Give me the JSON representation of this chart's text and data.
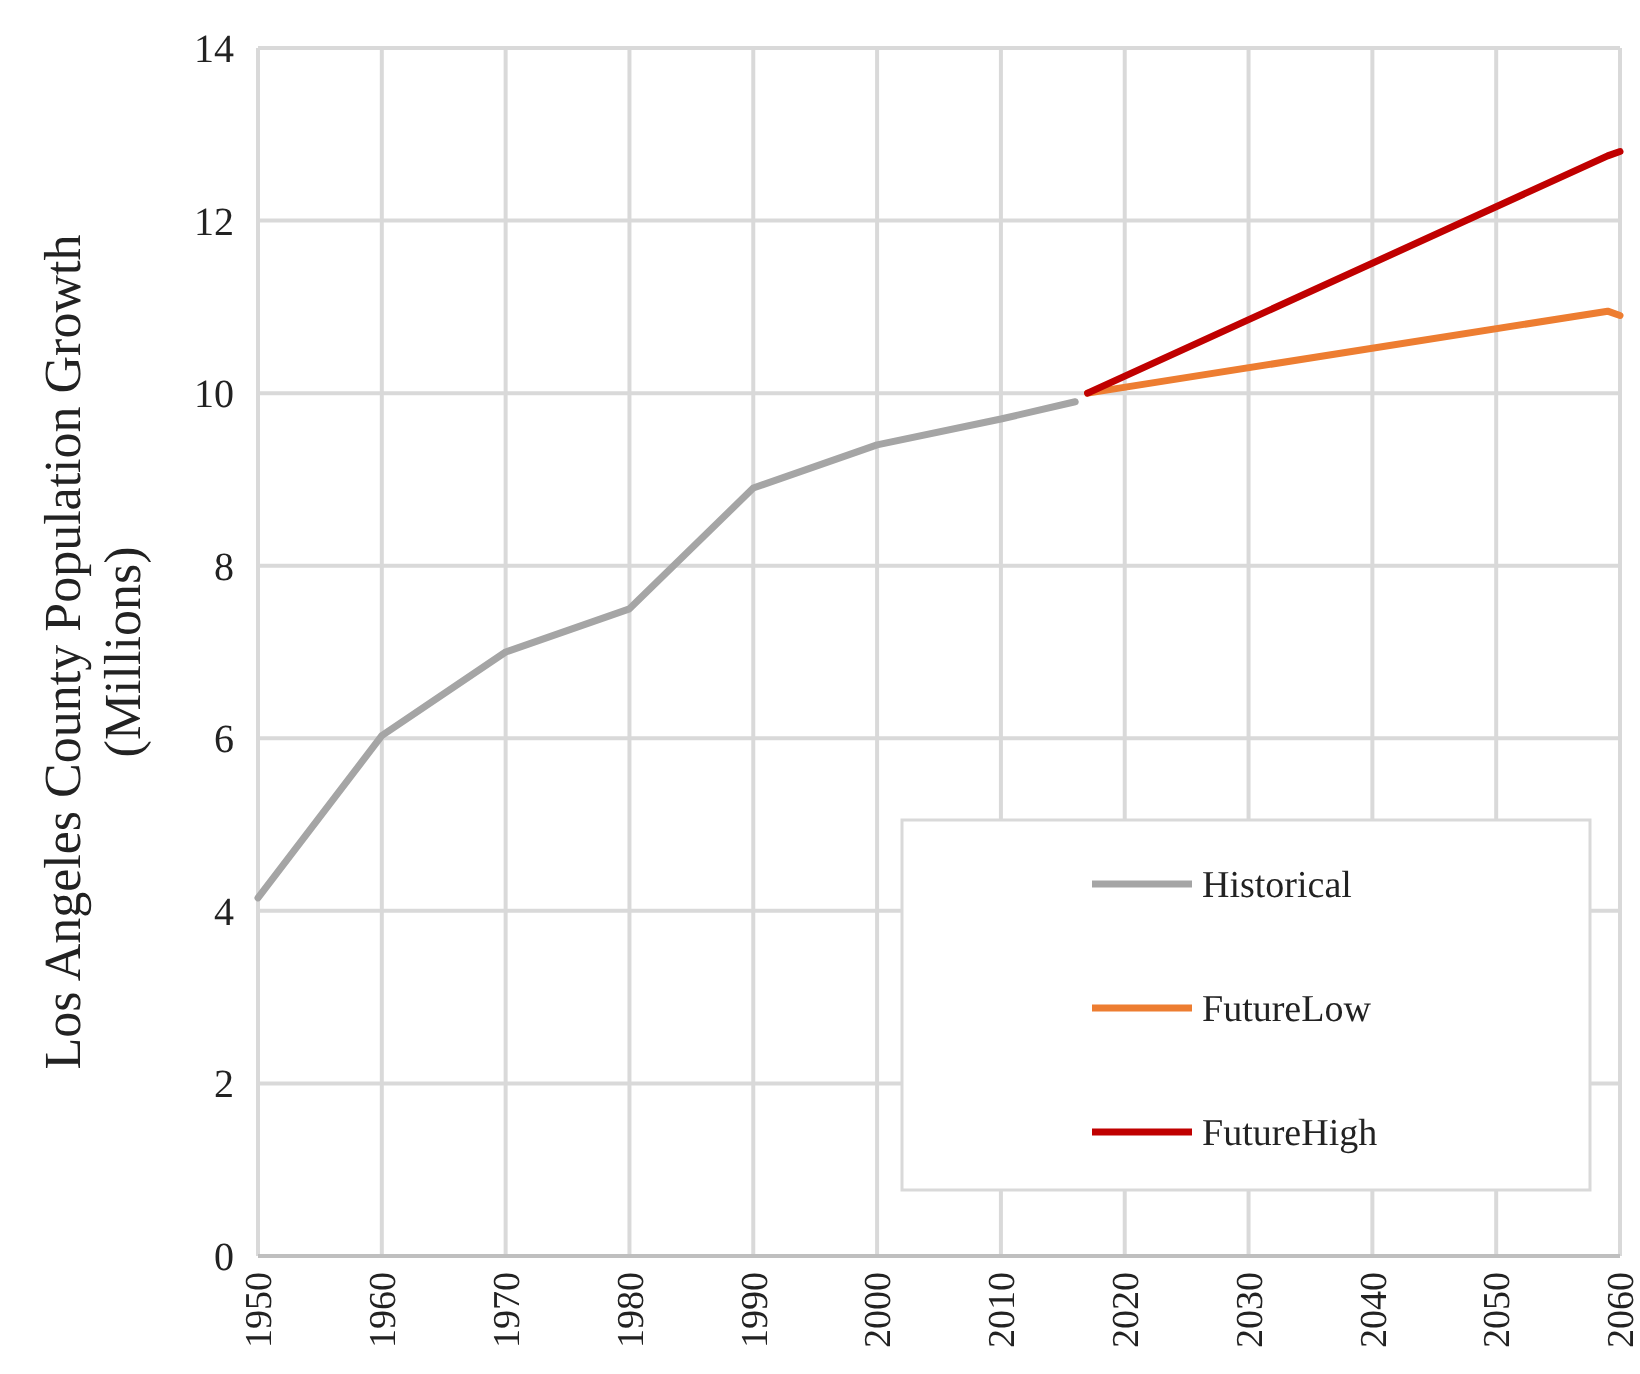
{
  "chart_data": {
    "type": "line",
    "ylabel": "Los Angeles County Population Growth\n(Millions)",
    "xlim": [
      1950,
      2060
    ],
    "xticks": [
      1950,
      1960,
      1970,
      1980,
      1990,
      2000,
      2010,
      2020,
      2030,
      2040,
      2050,
      2060
    ],
    "ylim": [
      0,
      14
    ],
    "yticks": [
      0,
      2,
      4,
      6,
      8,
      10,
      12,
      14
    ],
    "grid": true,
    "legend": "bottom right",
    "marker": "none",
    "line_style": "solid",
    "series": [
      {
        "name": "Historical",
        "color": "#a5a5a5",
        "x": [
          1950,
          1960,
          1970,
          1980,
          1990,
          2000,
          2010,
          2016
        ],
        "values": [
          4.15,
          6.03,
          7.0,
          7.5,
          8.9,
          9.4,
          9.7,
          9.9
        ]
      },
      {
        "name": "FutureLow",
        "color": "#ed7d31",
        "x": [
          2017,
          2059,
          2060
        ],
        "values": [
          10.0,
          10.95,
          10.9
        ]
      },
      {
        "name": "FutureHigh",
        "color": "#c00000",
        "x": [
          2017,
          2059,
          2060
        ],
        "values": [
          10.0,
          12.75,
          12.8
        ]
      }
    ]
  }
}
